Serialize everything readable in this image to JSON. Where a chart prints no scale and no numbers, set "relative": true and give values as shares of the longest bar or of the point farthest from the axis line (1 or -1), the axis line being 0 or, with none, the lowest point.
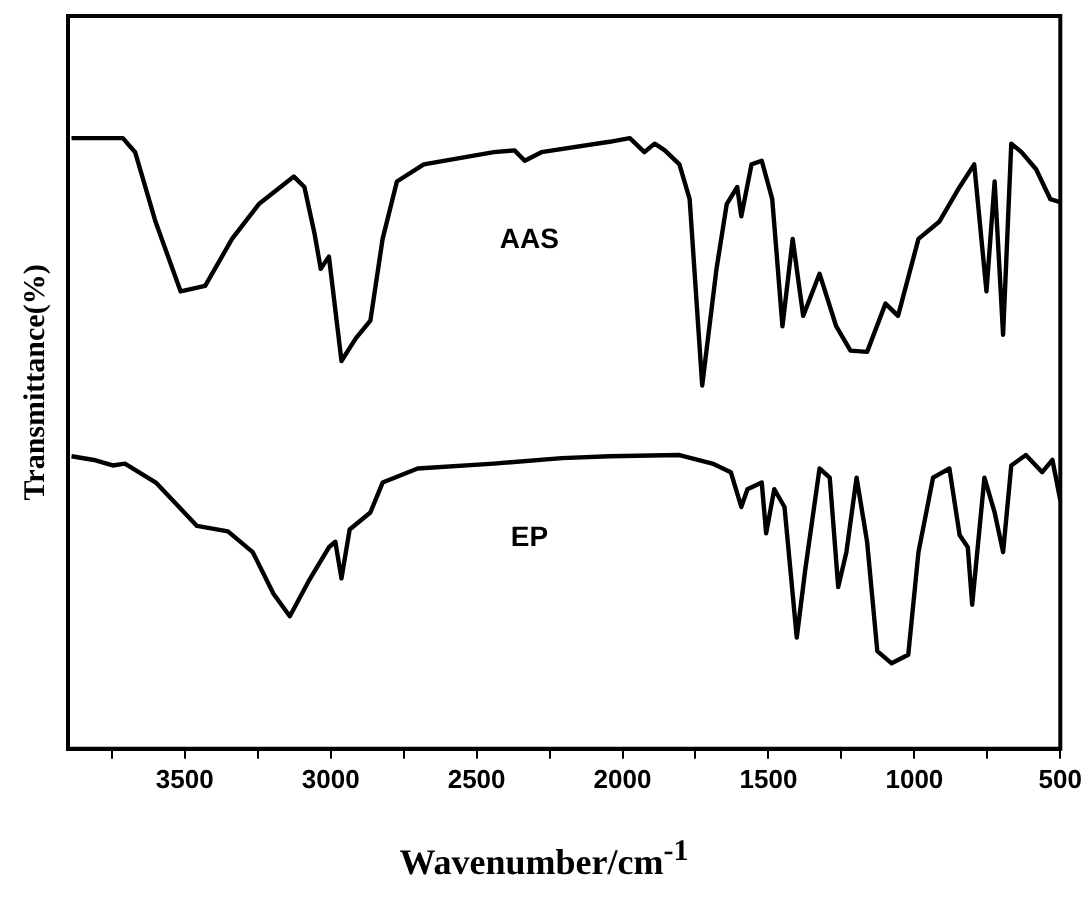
{
  "chart_data": {
    "type": "line",
    "xlabel": "Wavenumber/cm$^{-1}$",
    "ylabel": "Transmittance(%)",
    "relative": true,
    "xlim": [
      3900,
      500
    ],
    "xticks": [
      {
        "value": 3750,
        "label": null
      },
      3500,
      {
        "value": 3250,
        "label": null
      },
      3000,
      {
        "value": 2750,
        "label": null
      },
      2500,
      {
        "value": 2250,
        "label": null
      },
      2000,
      {
        "value": 1750,
        "label": null
      },
      1500,
      {
        "value": 1250,
        "label": null
      },
      1000,
      {
        "value": 750,
        "label": null
      },
      500
    ],
    "grid": false,
    "legend": false,
    "marker": "none",
    "line_style": "solid",
    "series": [
      {
        "name": "AAS",
        "color": "#000000",
        "x": [
          3888,
          3712,
          3670,
          3600,
          3514,
          3430,
          3338,
          3246,
          3126,
          3090,
          3055,
          3034,
          3006,
          2963,
          2914,
          2864,
          2822,
          2773,
          2681,
          2441,
          2370,
          2335,
          2278,
          2045,
          1975,
          1925,
          1890,
          1855,
          1805,
          1770,
          1727,
          1678,
          1643,
          1607,
          1593,
          1558,
          1523,
          1487,
          1452,
          1417,
          1381,
          1325,
          1268,
          1219,
          1162,
          1099,
          1056,
          986,
          915,
          845,
          795,
          753,
          725,
          696,
          668,
          633,
          583,
          534,
          500
        ],
        "values": [
          1.0,
          1.0,
          0.977,
          0.863,
          0.749,
          0.758,
          0.835,
          0.892,
          0.937,
          0.92,
          0.843,
          0.786,
          0.806,
          0.635,
          0.672,
          0.701,
          0.835,
          0.929,
          0.957,
          0.977,
          0.98,
          0.963,
          0.977,
          0.994,
          1.0,
          0.977,
          0.991,
          0.98,
          0.957,
          0.9,
          0.595,
          0.786,
          0.892,
          0.92,
          0.872,
          0.957,
          0.963,
          0.9,
          0.692,
          0.835,
          0.709,
          0.778,
          0.692,
          0.652,
          0.65,
          0.729,
          0.709,
          0.835,
          0.863,
          0.92,
          0.957,
          0.749,
          0.929,
          0.678,
          0.991,
          0.977,
          0.949,
          0.9,
          0.895
        ]
      },
      {
        "name": "EP",
        "color": "#000000",
        "x": [
          3888,
          3811,
          3747,
          3705,
          3599,
          3458,
          3352,
          3267,
          3196,
          3140,
          3076,
          3006,
          2984,
          2963,
          2935,
          2864,
          2822,
          2702,
          2441,
          2208,
          2045,
          1805,
          1692,
          1629,
          1593,
          1572,
          1523,
          1508,
          1480,
          1445,
          1403,
          1374,
          1325,
          1290,
          1261,
          1233,
          1198,
          1162,
          1127,
          1078,
          1021,
          986,
          936,
          880,
          845,
          817,
          802,
          760,
          725,
          696,
          668,
          618,
          562,
          527,
          500
        ],
        "values": [
          0.479,
          0.473,
          0.464,
          0.467,
          0.436,
          0.365,
          0.356,
          0.322,
          0.254,
          0.217,
          0.274,
          0.33,
          0.339,
          0.279,
          0.359,
          0.387,
          0.436,
          0.459,
          0.467,
          0.476,
          0.479,
          0.481,
          0.467,
          0.453,
          0.396,
          0.425,
          0.436,
          0.353,
          0.425,
          0.396,
          0.182,
          0.293,
          0.459,
          0.444,
          0.265,
          0.322,
          0.444,
          0.339,
          0.16,
          0.14,
          0.154,
          0.322,
          0.444,
          0.459,
          0.35,
          0.33,
          0.236,
          0.444,
          0.387,
          0.322,
          0.464,
          0.481,
          0.453,
          0.473,
          0.407
        ]
      }
    ]
  }
}
